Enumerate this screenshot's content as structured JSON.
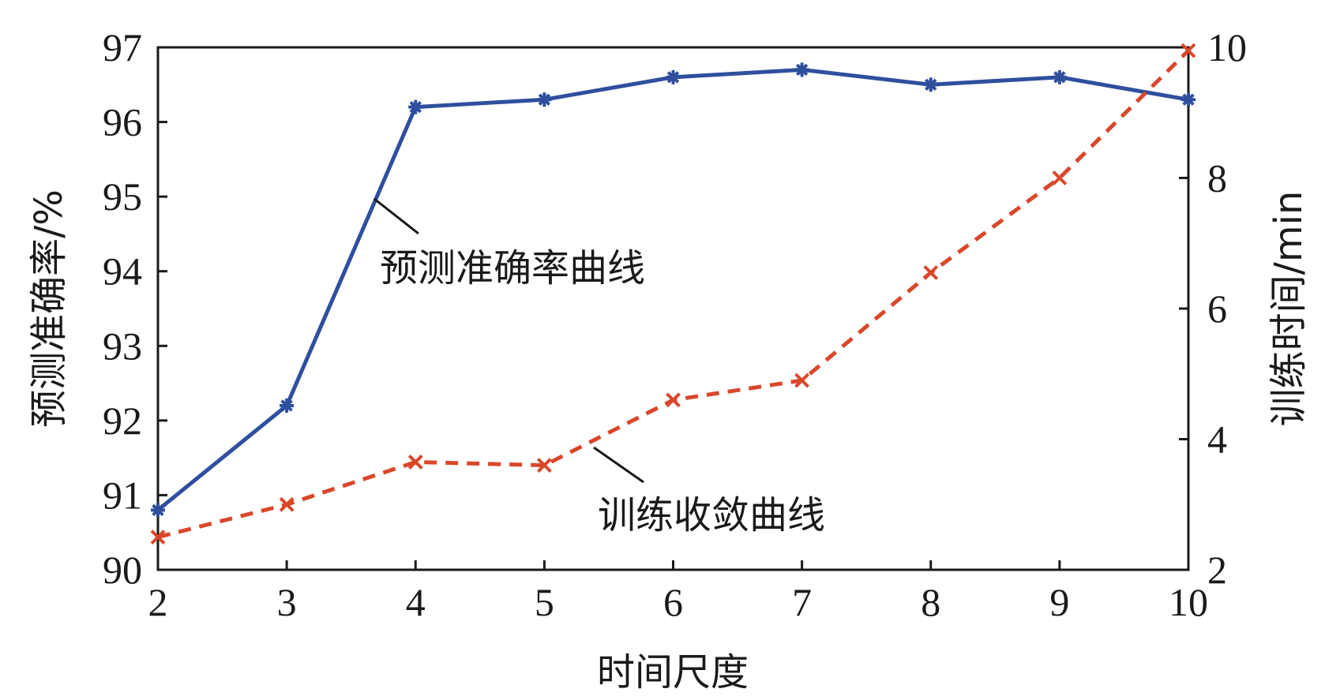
{
  "chart_data": {
    "type": "line",
    "xlabel": "时间尺度",
    "ylabel_left": "预测准确率/%",
    "ylabel_right": "训练时间/min",
    "x": [
      2,
      3,
      4,
      5,
      6,
      7,
      8,
      9,
      10
    ],
    "x_ticks": [
      "2",
      "3",
      "4",
      "5",
      "6",
      "7",
      "8",
      "9",
      "10"
    ],
    "xlim": [
      2,
      10
    ],
    "ylim_left": [
      90,
      97
    ],
    "y_ticks_left": [
      "90",
      "91",
      "92",
      "93",
      "94",
      "95",
      "96",
      "97"
    ],
    "ylim_right": [
      2,
      10
    ],
    "y_ticks_right": [
      "2",
      "4",
      "6",
      "8",
      "10"
    ],
    "grid": false,
    "series": [
      {
        "name": "预测准确率曲线",
        "axis": "left",
        "color": "#2f4f9e",
        "line_style": "solid",
        "marker": "asterisk",
        "values": [
          90.8,
          92.2,
          96.2,
          96.3,
          96.6,
          96.7,
          96.5,
          96.6,
          96.3
        ]
      },
      {
        "name": "训练收敛曲线",
        "axis": "right",
        "color": "#d9472b",
        "line_style": "dashed",
        "marker": "x",
        "values": [
          2.5,
          3.0,
          3.65,
          3.6,
          4.6,
          4.9,
          6.55,
          8.0,
          9.95
        ]
      }
    ],
    "annotations": [
      {
        "text": "预测准确率曲线",
        "series": 0
      },
      {
        "text": "训练收敛曲线",
        "series": 1
      }
    ]
  }
}
